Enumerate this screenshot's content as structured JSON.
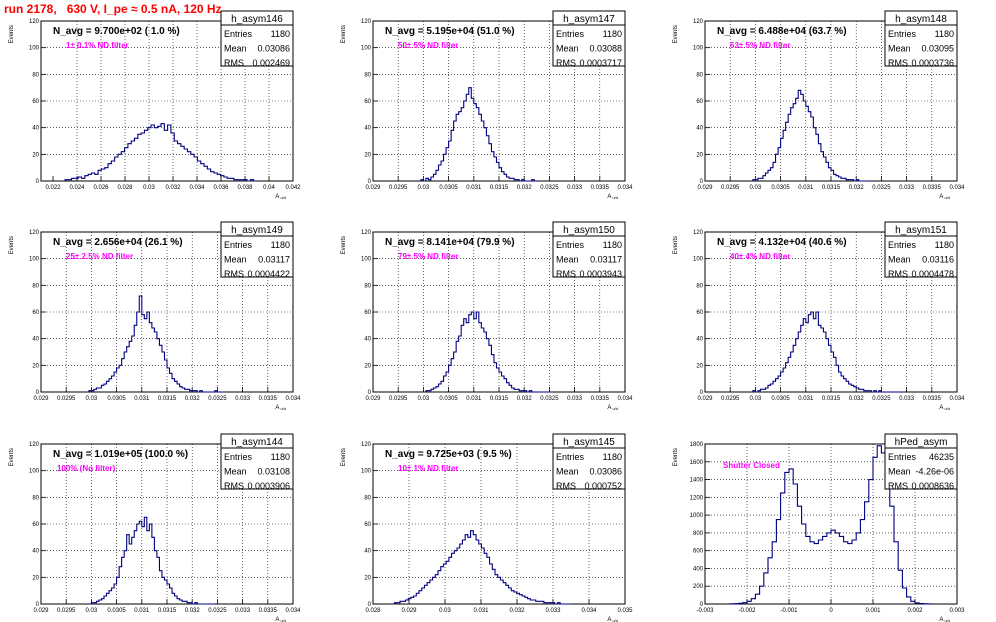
{
  "page_title": "run 2178,   630 V, I_pe ≈ 0.5 nA, 120 Hz",
  "colors": {
    "hist": "#000080",
    "note": "#ff00ff",
    "title": "#ff0000",
    "grid": "#000000"
  },
  "chart_data": [
    {
      "type": "histogram",
      "name": "h_asym146",
      "ylabel": "Events",
      "xlabel": "A",
      "xlabel_sub": "u/d",
      "header": "N_avg = 9.700e+02 ( 1.0 %)",
      "note": "1± 0.1% ND filter",
      "stats": {
        "Entries": "1180",
        "Mean": "0.03086",
        "RMS": "0.002469"
      },
      "xlim": [
        0.021,
        0.042
      ],
      "ylim": [
        0,
        120
      ],
      "xticks": [
        "0.022",
        "0.024",
        "0.026",
        "0.028",
        "0.03",
        "0.032",
        "0.034",
        "0.036",
        "0.038",
        "0.04",
        "0.042"
      ],
      "xtick_vals": [
        0.022,
        0.024,
        0.026,
        0.028,
        0.03,
        0.032,
        0.034,
        0.036,
        0.038,
        0.04,
        0.042
      ],
      "yticks": [
        "0",
        "20",
        "40",
        "60",
        "80",
        "100",
        "120"
      ],
      "ytick_vals": [
        0,
        20,
        40,
        60,
        80,
        100,
        120
      ],
      "bins_x0": 0.023,
      "bins_x1": 0.039,
      "values": [
        1,
        1,
        2,
        2,
        3,
        2,
        4,
        5,
        6,
        5,
        8,
        9,
        10,
        13,
        15,
        18,
        20,
        22,
        25,
        28,
        30,
        32,
        35,
        36,
        38,
        40,
        42,
        40,
        41,
        43,
        38,
        42,
        36,
        30,
        28,
        26,
        24,
        22,
        20,
        18,
        15,
        13,
        11,
        9,
        7,
        6,
        5,
        4,
        3,
        2,
        2,
        1,
        1,
        1,
        1,
        0,
        1,
        0
      ]
    },
    {
      "type": "histogram",
      "name": "h_asym147",
      "ylabel": "Events",
      "xlabel": "A",
      "xlabel_sub": "u/d",
      "header": "N_avg = 5.195e+04 (51.0 %)",
      "note": "50± 5% ND filter",
      "stats": {
        "Entries": "1180",
        "Mean": "0.03088",
        "RMS": "0.0003717"
      },
      "xlim": [
        0.029,
        0.034
      ],
      "ylim": [
        0,
        120
      ],
      "xticks": [
        "0.029",
        "0.0295",
        "0.03",
        "0.0305",
        "0.031",
        "0.0315",
        "0.032",
        "0.0325",
        "0.033",
        "0.0335",
        "0.034"
      ],
      "xtick_vals": [
        0.029,
        0.0295,
        0.03,
        0.0305,
        0.031,
        0.0315,
        0.032,
        0.0325,
        0.033,
        0.0335,
        0.034
      ],
      "yticks": [
        "0",
        "20",
        "40",
        "60",
        "80",
        "100",
        "120"
      ],
      "ytick_vals": [
        0,
        20,
        40,
        60,
        80,
        100,
        120
      ],
      "bins_x0": 0.02995,
      "bins_x1": 0.03225,
      "values": [
        1,
        0,
        2,
        1,
        3,
        5,
        8,
        12,
        15,
        20,
        25,
        30,
        38,
        45,
        50,
        52,
        55,
        60,
        65,
        70,
        62,
        58,
        55,
        50,
        45,
        40,
        34,
        28,
        22,
        18,
        14,
        10,
        7,
        5,
        3,
        2,
        2,
        1,
        1,
        0,
        1,
        0,
        0,
        0,
        1,
        0
      ]
    },
    {
      "type": "histogram",
      "name": "h_asym148",
      "ylabel": "Events",
      "xlabel": "A",
      "xlabel_sub": "u/d",
      "header": "N_avg = 6.488e+04 (63.7 %)",
      "note": "63± 5% ND filter",
      "stats": {
        "Entries": "1180",
        "Mean": "0.03095",
        "RMS": "0.0003736"
      },
      "xlim": [
        0.029,
        0.034
      ],
      "ylim": [
        0,
        120
      ],
      "xticks": [
        "0.029",
        "0.0295",
        "0.03",
        "0.0305",
        "0.031",
        "0.0315",
        "0.032",
        "0.0325",
        "0.033",
        "0.0335",
        "0.034"
      ],
      "xtick_vals": [
        0.029,
        0.0295,
        0.03,
        0.0305,
        0.031,
        0.0315,
        0.032,
        0.0325,
        0.033,
        0.0335,
        0.034
      ],
      "yticks": [
        "0",
        "20",
        "40",
        "60",
        "80",
        "100",
        "120"
      ],
      "ytick_vals": [
        0,
        20,
        40,
        60,
        80,
        100,
        120
      ],
      "bins_x0": 0.02995,
      "bins_x1": 0.03225,
      "values": [
        1,
        1,
        2,
        2,
        4,
        6,
        8,
        10,
        14,
        20,
        25,
        32,
        38,
        44,
        50,
        55,
        58,
        62,
        68,
        65,
        60,
        56,
        52,
        48,
        40,
        35,
        28,
        22,
        18,
        14,
        10,
        8,
        5,
        4,
        3,
        2,
        2,
        1,
        1,
        1,
        0,
        1,
        0,
        0,
        0,
        0
      ]
    },
    {
      "type": "histogram",
      "name": "h_asym149",
      "ylabel": "Events",
      "xlabel": "A",
      "xlabel_sub": "u/d",
      "header": "N_avg = 2.656e+04 (26.1 %)",
      "note": "25± 2.5% ND filter",
      "stats": {
        "Entries": "1180",
        "Mean": "0.03117",
        "RMS": "0.0004422"
      },
      "xlim": [
        0.029,
        0.034
      ],
      "ylim": [
        0,
        120
      ],
      "xticks": [
        "0.029",
        "0.0295",
        "0.03",
        "0.0305",
        "0.031",
        "0.0315",
        "0.032",
        "0.0325",
        "0.033",
        "0.0335",
        "0.034"
      ],
      "xtick_vals": [
        0.029,
        0.0295,
        0.03,
        0.0305,
        0.031,
        0.0315,
        0.032,
        0.0325,
        0.033,
        0.0335,
        0.034
      ],
      "yticks": [
        "0",
        "20",
        "40",
        "60",
        "80",
        "100",
        "120"
      ],
      "ytick_vals": [
        0,
        20,
        40,
        60,
        80,
        100,
        120
      ],
      "bins_x0": 0.02995,
      "bins_x1": 0.03265,
      "values": [
        1,
        1,
        2,
        3,
        3,
        5,
        6,
        8,
        10,
        12,
        15,
        18,
        20,
        25,
        30,
        34,
        38,
        42,
        50,
        60,
        72,
        58,
        55,
        60,
        52,
        48,
        45,
        40,
        35,
        30,
        24,
        18,
        14,
        10,
        8,
        6,
        4,
        3,
        2,
        2,
        1,
        1,
        1,
        0,
        1,
        0,
        0,
        0,
        0,
        0,
        1,
        0,
        0,
        0
      ]
    },
    {
      "type": "histogram",
      "name": "h_asym150",
      "ylabel": "Events",
      "xlabel": "A",
      "xlabel_sub": "u/d",
      "header": "N_avg = 8.141e+04 (79.9 %)",
      "note": "79± 5% ND filter",
      "stats": {
        "Entries": "1180",
        "Mean": "0.03117",
        "RMS": "0.0003943"
      },
      "xlim": [
        0.029,
        0.034
      ],
      "ylim": [
        0,
        120
      ],
      "xticks": [
        "0.029",
        "0.0295",
        "0.03",
        "0.0305",
        "0.031",
        "0.0315",
        "0.032",
        "0.0325",
        "0.033",
        "0.0335",
        "0.034"
      ],
      "xtick_vals": [
        0.029,
        0.0295,
        0.03,
        0.0305,
        0.031,
        0.0315,
        0.032,
        0.0325,
        0.033,
        0.0335,
        0.034
      ],
      "yticks": [
        "0",
        "20",
        "40",
        "60",
        "80",
        "100",
        "120"
      ],
      "ytick_vals": [
        0,
        20,
        40,
        60,
        80,
        100,
        120
      ],
      "bins_x0": 0.03005,
      "bins_x1": 0.03255,
      "values": [
        1,
        1,
        2,
        3,
        4,
        6,
        8,
        12,
        15,
        20,
        25,
        30,
        38,
        42,
        50,
        55,
        52,
        58,
        60,
        55,
        60,
        52,
        48,
        45,
        40,
        35,
        28,
        22,
        18,
        15,
        12,
        10,
        7,
        5,
        3,
        2,
        2,
        1,
        1,
        1,
        0,
        1,
        0,
        0,
        0,
        0,
        0,
        0,
        0,
        0
      ]
    },
    {
      "type": "histogram",
      "name": "h_asym151",
      "ylabel": "Events",
      "xlabel": "A",
      "xlabel_sub": "u/d",
      "header": "N_avg = 4.132e+04 (40.6 %)",
      "note": "40± 4% ND filter",
      "stats": {
        "Entries": "1180",
        "Mean": "0.03116",
        "RMS": "0.0004478"
      },
      "xlim": [
        0.029,
        0.034
      ],
      "ylim": [
        0,
        120
      ],
      "xticks": [
        "0.029",
        "0.0295",
        "0.03",
        "0.0305",
        "0.031",
        "0.0315",
        "0.032",
        "0.0325",
        "0.033",
        "0.0335",
        "0.034"
      ],
      "xtick_vals": [
        0.029,
        0.0295,
        0.03,
        0.0305,
        0.031,
        0.0315,
        0.032,
        0.0325,
        0.033,
        0.0335,
        0.034
      ],
      "yticks": [
        "0",
        "20",
        "40",
        "60",
        "80",
        "100",
        "120"
      ],
      "ytick_vals": [
        0,
        20,
        40,
        60,
        80,
        100,
        120
      ],
      "bins_x0": 0.02995,
      "bins_x1": 0.0329,
      "values": [
        1,
        0,
        1,
        2,
        2,
        3,
        5,
        6,
        8,
        10,
        12,
        15,
        18,
        22,
        26,
        30,
        35,
        40,
        45,
        50,
        55,
        52,
        58,
        60,
        55,
        60,
        50,
        48,
        45,
        40,
        35,
        30,
        26,
        20,
        15,
        12,
        10,
        8,
        6,
        5,
        4,
        3,
        2,
        2,
        1,
        1,
        1,
        0,
        1,
        0,
        1,
        0,
        0,
        0,
        0,
        0,
        0,
        0,
        0
      ]
    },
    {
      "type": "histogram",
      "name": "h_asym144",
      "ylabel": "Events",
      "xlabel": "A",
      "xlabel_sub": "u/d",
      "header": "N_avg = 1.019e+05 (100.0 %)",
      "note": "100% (No filter)",
      "stats": {
        "Entries": "1180",
        "Mean": "0.03108",
        "RMS": "0.0003906"
      },
      "xlim": [
        0.029,
        0.034
      ],
      "ylim": [
        0,
        120
      ],
      "xticks": [
        "0.029",
        "0.0295",
        "0.03",
        "0.0305",
        "0.031",
        "0.0315",
        "0.032",
        "0.0325",
        "0.033",
        "0.0335",
        "0.034"
      ],
      "xtick_vals": [
        0.029,
        0.0295,
        0.03,
        0.0305,
        0.031,
        0.0315,
        0.032,
        0.0325,
        0.033,
        0.0335,
        0.034
      ],
      "yticks": [
        "0",
        "20",
        "40",
        "60",
        "80",
        "100",
        "120"
      ],
      "ytick_vals": [
        0,
        20,
        40,
        60,
        80,
        100,
        120
      ],
      "bins_x0": 0.02995,
      "bins_x1": 0.03245,
      "values": [
        0,
        1,
        1,
        2,
        3,
        4,
        6,
        8,
        10,
        12,
        15,
        20,
        28,
        35,
        40,
        52,
        45,
        50,
        55,
        60,
        62,
        58,
        65,
        55,
        60,
        50,
        40,
        35,
        25,
        20,
        18,
        15,
        12,
        8,
        6,
        4,
        3,
        2,
        2,
        1,
        1,
        0,
        1,
        0,
        0,
        0,
        0,
        0,
        0,
        0
      ]
    },
    {
      "type": "histogram",
      "name": "h_asym145",
      "ylabel": "Events",
      "xlabel": "A",
      "xlabel_sub": "u/d",
      "header": "N_avg = 9.725e+03 ( 9.5 %)",
      "note": "10± 1% ND filter",
      "stats": {
        "Entries": "1180",
        "Mean": "0.03086",
        "RMS": "0.000752"
      },
      "xlim": [
        0.028,
        0.035
      ],
      "ylim": [
        0,
        120
      ],
      "xticks": [
        "0.028",
        "0.029",
        "0.03",
        "0.031",
        "0.032",
        "0.033",
        "0.034",
        "0.035"
      ],
      "xtick_vals": [
        0.028,
        0.029,
        0.03,
        0.031,
        0.032,
        0.033,
        0.034,
        0.035
      ],
      "yticks": [
        "0",
        "20",
        "40",
        "60",
        "80",
        "100",
        "120"
      ],
      "ytick_vals": [
        0,
        20,
        40,
        60,
        80,
        100,
        120
      ],
      "bins_x0": 0.0286,
      "bins_x1": 0.0335,
      "values": [
        1,
        1,
        2,
        2,
        3,
        4,
        5,
        6,
        8,
        10,
        12,
        14,
        16,
        18,
        20,
        22,
        25,
        28,
        30,
        32,
        35,
        38,
        40,
        42,
        45,
        48,
        52,
        50,
        55,
        52,
        48,
        45,
        42,
        38,
        35,
        30,
        26,
        22,
        20,
        18,
        16,
        14,
        12,
        10,
        9,
        8,
        7,
        6,
        5,
        4,
        3,
        3,
        2,
        2,
        2,
        1,
        1,
        1,
        1,
        0,
        1,
        0,
        0,
        0,
        0
      ]
    },
    {
      "type": "histogram",
      "name": "hPed_asym",
      "ylabel": "Events",
      "xlabel": "A",
      "xlabel_sub": "u/d",
      "header": "",
      "note": "Shutter Closed",
      "stats": {
        "Entries": "46235",
        "Mean": "-4.26e-06",
        "RMS": "0.0008636"
      },
      "xlim": [
        -0.003,
        0.003
      ],
      "ylim": [
        0,
        1800
      ],
      "xticks": [
        "-0.003",
        "-0.002",
        "-0.001",
        "0",
        "0.001",
        "0.002",
        "0.003"
      ],
      "xtick_vals": [
        -0.003,
        -0.002,
        -0.001,
        0,
        0.001,
        0.002,
        0.003
      ],
      "yticks": [
        "0",
        "200",
        "400",
        "600",
        "800",
        "1000",
        "1200",
        "1400",
        "1600",
        "1800"
      ],
      "ytick_vals": [
        0,
        200,
        400,
        600,
        800,
        1000,
        1200,
        1400,
        1600,
        1800
      ],
      "bins_x0": -0.0024,
      "bins_x1": 0.0024,
      "values": [
        2,
        4,
        8,
        15,
        30,
        60,
        110,
        200,
        350,
        520,
        700,
        950,
        1250,
        1480,
        1520,
        1350,
        1100,
        900,
        760,
        700,
        680,
        720,
        760,
        800,
        830,
        800,
        760,
        700,
        680,
        720,
        800,
        950,
        1150,
        1400,
        1650,
        1780,
        1700,
        1450,
        1100,
        700,
        380,
        180,
        80,
        30,
        12,
        5,
        2,
        1
      ]
    }
  ]
}
